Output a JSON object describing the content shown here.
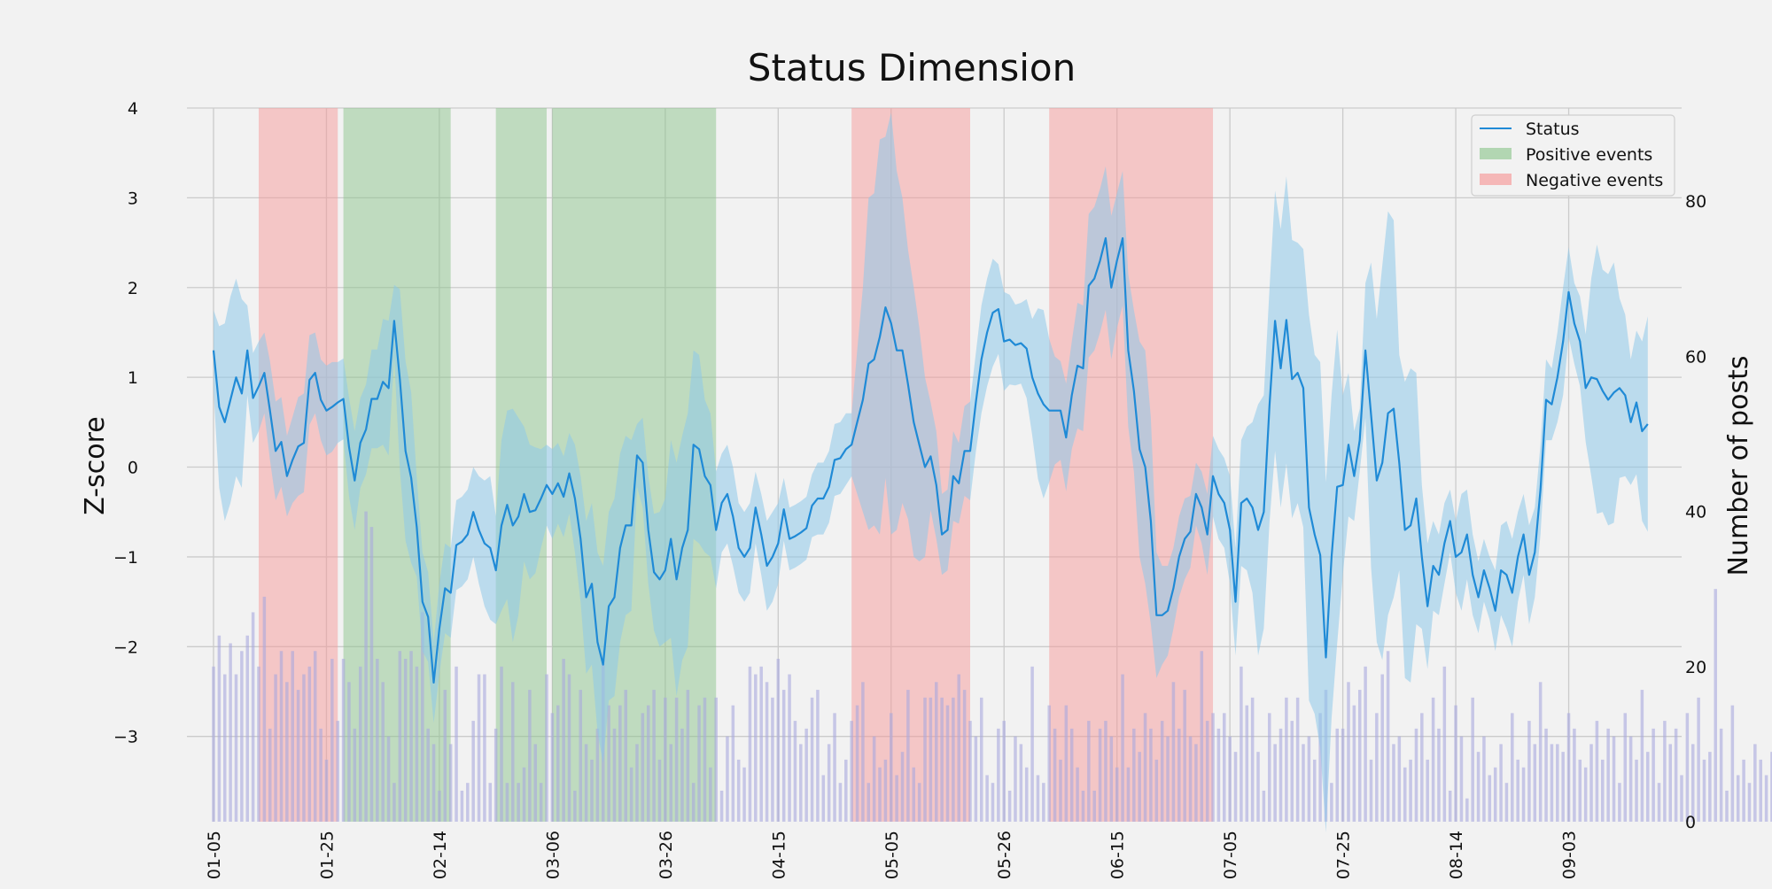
{
  "chart_data": {
    "type": "line",
    "title": "Status Dimension",
    "ylabel": "Z-score",
    "y2label": "Number of posts",
    "ylim": [
      -3.95,
      4.0
    ],
    "y2lim": [
      0,
      92
    ],
    "x_start": "2020-01-05",
    "x_end": "2020-09-21",
    "xtick_labels": [
      "01-05",
      "01-25",
      "02-14",
      "03-06",
      "03-26",
      "04-15",
      "05-05",
      "05-26",
      "06-15",
      "07-05",
      "07-25",
      "08-14",
      "09-03"
    ],
    "ytick_labels": [
      "4",
      "3",
      "2",
      "1",
      "0",
      "−1",
      "−2",
      "−3"
    ],
    "ytick_values": [
      4,
      3,
      2,
      1,
      0,
      -1,
      -2,
      -3
    ],
    "y2tick_labels": [
      "0",
      "20",
      "40",
      "60",
      "80"
    ],
    "y2tick_values": [
      0,
      20,
      40,
      60,
      80
    ],
    "grid": true,
    "legend": {
      "placement": "top-right",
      "entries": [
        {
          "label": "Status",
          "kind": "line",
          "color": "#1f8ad6"
        },
        {
          "label": "Positive events",
          "kind": "patch",
          "color": "#9ccc9c"
        },
        {
          "label": "Negative events",
          "kind": "patch",
          "color": "#f5a3a3"
        }
      ]
    },
    "colors": {
      "line": "#1f8ad6",
      "band": "#8ec8ea",
      "bars": "#a8a8dd",
      "positive": "#8cc48c",
      "negative": "#f59a9a"
    },
    "events": [
      {
        "type": "negative",
        "start": "2020-01-13",
        "end": "2020-01-27"
      },
      {
        "type": "positive",
        "start": "2020-01-28",
        "end": "2020-02-16"
      },
      {
        "type": "positive",
        "start": "2020-02-24",
        "end": "2020-03-04"
      },
      {
        "type": "positive",
        "start": "2020-03-05",
        "end": "2020-04-03"
      },
      {
        "type": "negative",
        "start": "2020-04-27",
        "end": "2020-05-18"
      },
      {
        "type": "negative",
        "start": "2020-06-01",
        "end": "2020-06-30"
      }
    ],
    "series": [
      {
        "name": "Status",
        "x_start": "2020-01-05",
        "values": [
          1.3,
          0.67,
          0.5,
          0.75,
          1.0,
          0.82,
          1.3,
          0.77,
          0.9,
          1.05,
          0.63,
          0.18,
          0.28,
          -0.1,
          0.08,
          0.23,
          0.27,
          0.97,
          1.05,
          0.75,
          0.63,
          0.67,
          0.72,
          0.76,
          0.22,
          -0.15,
          0.27,
          0.42,
          0.76,
          0.76,
          0.95,
          0.88,
          1.63,
          0.98,
          0.18,
          -0.12,
          -0.67,
          -1.5,
          -1.67,
          -2.4,
          -1.8,
          -1.35,
          -1.4,
          -0.87,
          -0.83,
          -0.75,
          -0.5,
          -0.7,
          -0.85,
          -0.9,
          -1.15,
          -0.65,
          -0.42,
          -0.65,
          -0.55,
          -0.3,
          -0.5,
          -0.48,
          -0.35,
          -0.2,
          -0.3,
          -0.18,
          -0.33,
          -0.07,
          -0.35,
          -0.8,
          -1.45,
          -1.3,
          -1.95,
          -2.2,
          -1.55,
          -1.45,
          -0.9,
          -0.65,
          -0.65,
          0.13,
          0.05,
          -0.7,
          -1.17,
          -1.25,
          -1.15,
          -0.8,
          -1.25,
          -0.9,
          -0.7,
          0.25,
          0.2,
          -0.1,
          -0.2,
          -0.7,
          -0.4,
          -0.3,
          -0.55,
          -0.9,
          -1.0,
          -0.9,
          -0.45,
          -0.75,
          -1.1,
          -1.0,
          -0.85,
          -0.47,
          -0.8,
          -0.77,
          -0.73,
          -0.68,
          -0.43,
          -0.35,
          -0.35,
          -0.22,
          0.08,
          0.1,
          0.2,
          0.25,
          0.5,
          0.75,
          1.15,
          1.2,
          1.45,
          1.78,
          1.6,
          1.3,
          1.3,
          0.92,
          0.5,
          0.25,
          0.0,
          0.12,
          -0.2,
          -0.75,
          -0.7,
          -0.1,
          -0.18,
          0.18,
          0.18,
          0.72,
          1.2,
          1.5,
          1.72,
          1.76,
          1.4,
          1.42,
          1.36,
          1.38,
          1.32,
          1.0,
          0.82,
          0.7,
          0.63,
          0.63,
          0.63,
          0.33,
          0.8,
          1.13,
          1.1,
          2.02,
          2.1,
          2.3,
          2.55,
          2.0,
          2.3,
          2.55,
          1.3,
          0.85,
          0.2,
          0.0,
          -0.6,
          -1.65,
          -1.65,
          -1.6,
          -1.35,
          -1.0,
          -0.8,
          -0.72,
          -0.3,
          -0.45,
          -0.75,
          -0.1,
          -0.3,
          -0.4,
          -0.7,
          -1.5,
          -0.4,
          -0.35,
          -0.45,
          -0.7,
          -0.5,
          0.68,
          1.63,
          1.1,
          1.64,
          0.98,
          1.05,
          0.88,
          -0.45,
          -0.75,
          -0.98,
          -2.12,
          -1.0,
          -0.22,
          -0.2,
          0.25,
          -0.1,
          0.3,
          1.3,
          0.58,
          -0.15,
          0.05,
          0.6,
          0.65,
          0.05,
          -0.7,
          -0.65,
          -0.35,
          -1.0,
          -1.55,
          -1.1,
          -1.2,
          -0.85,
          -0.6,
          -1.0,
          -0.95,
          -0.75,
          -1.2,
          -1.45,
          -1.15,
          -1.35,
          -1.6,
          -1.15,
          -1.2,
          -1.4,
          -1.0,
          -0.75,
          -1.2,
          -0.95,
          -0.25,
          0.75,
          0.7,
          1.0,
          1.4,
          1.95,
          1.6,
          1.4,
          0.88,
          1.0,
          0.98,
          0.85,
          0.75,
          0.83,
          0.88,
          0.8,
          0.5,
          0.72,
          0.4,
          0.48
        ],
        "band_halfwidth": [
          0.45,
          0.9,
          1.1,
          1.15,
          1.1,
          1.05,
          0.5,
          0.5,
          0.5,
          0.45,
          0.55,
          0.55,
          0.5,
          0.45,
          0.48,
          0.55,
          0.55,
          0.5,
          0.45,
          0.45,
          0.5,
          0.5,
          0.45,
          0.45,
          0.55,
          0.55,
          0.5,
          0.5,
          0.55,
          0.55,
          0.7,
          0.75,
          0.4,
          1.0,
          1.0,
          0.95,
          0.55,
          0.55,
          0.5,
          0.45,
          0.5,
          0.5,
          0.5,
          0.5,
          0.5,
          0.5,
          0.5,
          0.6,
          0.7,
          0.8,
          0.6,
          0.95,
          1.05,
          1.3,
          1.1,
          0.75,
          0.75,
          0.7,
          0.55,
          0.45,
          0.5,
          0.45,
          0.45,
          0.45,
          0.6,
          0.7,
          0.85,
          0.9,
          1.0,
          1.1,
          1.05,
          1.1,
          1.05,
          1.0,
          0.95,
          0.35,
          0.5,
          0.6,
          0.65,
          0.75,
          0.8,
          1.1,
          1.3,
          1.25,
          1.3,
          1.05,
          1.05,
          0.85,
          0.8,
          0.65,
          0.55,
          0.55,
          0.55,
          0.5,
          0.5,
          0.5,
          0.4,
          0.45,
          0.5,
          0.5,
          0.45,
          0.35,
          0.35,
          0.35,
          0.35,
          0.35,
          0.35,
          0.4,
          0.4,
          0.4,
          0.4,
          0.4,
          0.4,
          0.35,
          0.8,
          1.25,
          1.85,
          1.85,
          2.2,
          1.9,
          2.35,
          2.0,
          1.7,
          1.5,
          1.5,
          1.3,
          1.0,
          0.6,
          0.6,
          0.45,
          0.45,
          0.5,
          0.45,
          0.5,
          0.55,
          0.55,
          0.6,
          0.6,
          0.6,
          0.5,
          0.55,
          0.5,
          0.45,
          0.45,
          0.55,
          0.65,
          0.95,
          1.05,
          0.8,
          0.6,
          0.55,
          0.6,
          0.6,
          0.7,
          0.7,
          0.8,
          0.8,
          0.8,
          0.8,
          0.8,
          0.75,
          0.75,
          0.85,
          0.9,
          1.2,
          1.3,
          1.15,
          0.7,
          0.55,
          0.5,
          0.45,
          0.45,
          0.45,
          0.4,
          0.35,
          0.4,
          0.45,
          0.45,
          0.5,
          0.5,
          0.6,
          0.6,
          0.7,
          0.8,
          0.95,
          1.4,
          1.3,
          1.3,
          1.45,
          1.55,
          1.6,
          1.55,
          1.45,
          1.55,
          2.15,
          2.0,
          2.15,
          1.95,
          1.8,
          1.75,
          1.0,
          0.8,
          0.5,
          0.35,
          0.75,
          1.7,
          1.8,
          2.2,
          2.25,
          2.1,
          1.2,
          1.65,
          1.75,
          1.4,
          0.8,
          0.7,
          0.5,
          0.45,
          0.45,
          0.35,
          0.4,
          0.65,
          0.5,
          0.45,
          0.4,
          0.35,
          0.35,
          0.45,
          0.5,
          0.6,
          0.6,
          0.5,
          0.45,
          0.55,
          0.5,
          0.5,
          0.45,
          0.4,
          0.5,
          0.6,
          0.5,
          0.45,
          0.5,
          0.6,
          1.1,
          1.5,
          1.35,
          1.4,
          1.45,
          1.0,
          0.9,
          0.7,
          0.8,
          1.0,
          1.2,
          1.45,
          1.6,
          1.4,
          1.5,
          1.7,
          1.6,
          1.15,
          1.1,
          1.3,
          1.3
        ]
      },
      {
        "name": "Number of posts",
        "axis": "right",
        "type": "bar",
        "x_start": "2020-01-05",
        "values": [
          20,
          24,
          19,
          23,
          19,
          22,
          24,
          27,
          20,
          29,
          12,
          19,
          22,
          18,
          22,
          17,
          19,
          20,
          22,
          12,
          8,
          21,
          13,
          21,
          18,
          12,
          20,
          40,
          38,
          21,
          18,
          11,
          5,
          22,
          21,
          22,
          20,
          27,
          12,
          10,
          4,
          17,
          10,
          20,
          4,
          5,
          13,
          19,
          19,
          5,
          12,
          20,
          5,
          18,
          5,
          7,
          17,
          10,
          5,
          19,
          14,
          15,
          21,
          19,
          4,
          17,
          10,
          8,
          12,
          21,
          15,
          12,
          15,
          17,
          7,
          10,
          14,
          15,
          17,
          8,
          16,
          10,
          16,
          12,
          17,
          5,
          15,
          16,
          7,
          16,
          4,
          11,
          15,
          8,
          7,
          20,
          19,
          20,
          18,
          16,
          21,
          17,
          19,
          13,
          10,
          12,
          16,
          17,
          6,
          10,
          14,
          5,
          8,
          13,
          15,
          18,
          5,
          11,
          7,
          8,
          14,
          6,
          9,
          17,
          7,
          5,
          16,
          16,
          18,
          16,
          15,
          16,
          19,
          17,
          13,
          11,
          16,
          6,
          5,
          12,
          13,
          4,
          11,
          10,
          7,
          20,
          6,
          5,
          15,
          12,
          8,
          15,
          12,
          7,
          4,
          13,
          4,
          12,
          13,
          11,
          7,
          19,
          7,
          12,
          9,
          14,
          12,
          8,
          13,
          11,
          18,
          12,
          17,
          11,
          10,
          22,
          13,
          14,
          12,
          14,
          11,
          9,
          20,
          15,
          16,
          9,
          4,
          14,
          10,
          12,
          16,
          13,
          16,
          10,
          11,
          8,
          14,
          17,
          5,
          12,
          12,
          18,
          15,
          17,
          20,
          8,
          14,
          19,
          22,
          10,
          11,
          7,
          8,
          12,
          14,
          8,
          16,
          12,
          20,
          4,
          15,
          11,
          3,
          16,
          9,
          11,
          6,
          7,
          10,
          5,
          14,
          8,
          7,
          13,
          10,
          18,
          12,
          10,
          10,
          9,
          14,
          12,
          8,
          7,
          10,
          13,
          8,
          12,
          11,
          5,
          14,
          11,
          8,
          17,
          9,
          12,
          5,
          13,
          10,
          12,
          6,
          14,
          10,
          16,
          8,
          9,
          30,
          12,
          4,
          15,
          6,
          8,
          5,
          10,
          8,
          6,
          9,
          8,
          10,
          4,
          11,
          14,
          9,
          8,
          8,
          12,
          11
        ]
      }
    ]
  }
}
